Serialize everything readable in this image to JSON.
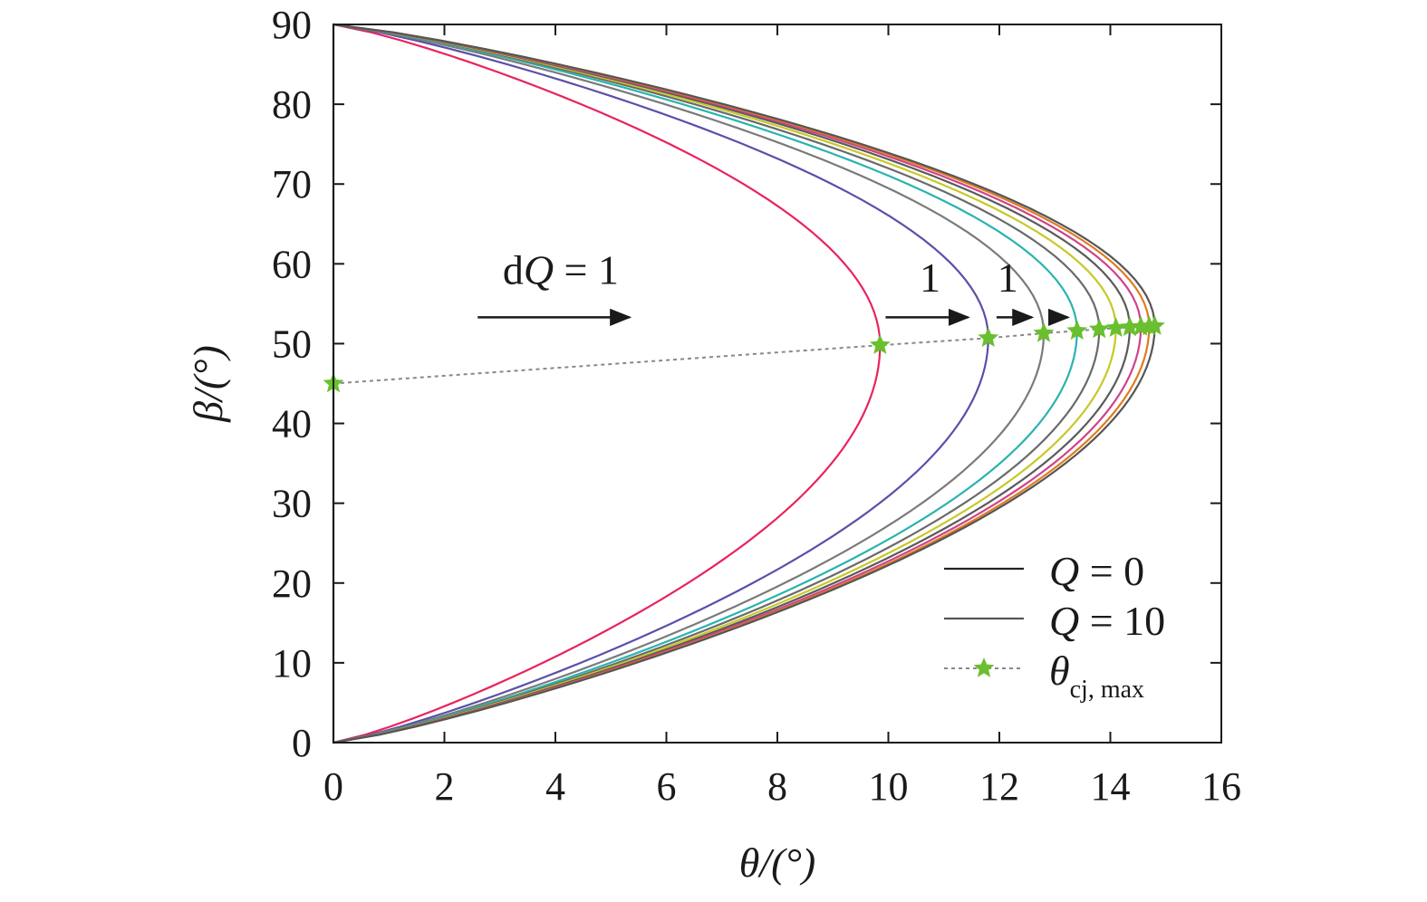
{
  "chart_data": {
    "type": "line",
    "title": "",
    "xlabel": "θ/(°)",
    "ylabel": "β/(°)",
    "xlim": [
      0,
      16
    ],
    "ylim": [
      0,
      90
    ],
    "x_ticks": [
      "0",
      "2",
      "4",
      "6",
      "8",
      "10",
      "12",
      "14",
      "16"
    ],
    "y_ticks": [
      "0",
      "10",
      "20",
      "30",
      "40",
      "50",
      "60",
      "70",
      "80",
      "90"
    ],
    "grid": false,
    "legend_position": "bottom-right",
    "legend": [
      {
        "label_var": "Q",
        "label_rest": " = 0",
        "style": "solid",
        "color": "#222222"
      },
      {
        "label_var": "Q",
        "label_rest": " = 10",
        "style": "solid",
        "color": "#555555"
      },
      {
        "label_var": "θ",
        "label_sub": "cj, max",
        "style": "dotted-star",
        "color": "#6abf2e"
      }
    ],
    "series": [
      {
        "Q": 0,
        "theta_max": 0.0,
        "beta_at_max": 45.0,
        "color": "#222222"
      },
      {
        "Q": 1,
        "theta_max": 9.85,
        "beta_at_max": 49.8,
        "color": "#e8245c"
      },
      {
        "Q": 2,
        "theta_max": 11.8,
        "beta_at_max": 50.7,
        "color": "#5b4fa8"
      },
      {
        "Q": 3,
        "theta_max": 12.8,
        "beta_at_max": 51.3,
        "color": "#7a7a7a"
      },
      {
        "Q": 4,
        "theta_max": 13.4,
        "beta_at_max": 51.6,
        "color": "#2ab3b0"
      },
      {
        "Q": 5,
        "theta_max": 13.8,
        "beta_at_max": 51.8,
        "color": "#6a6a6a"
      },
      {
        "Q": 6,
        "theta_max": 14.1,
        "beta_at_max": 51.95,
        "color": "#c8c828"
      },
      {
        "Q": 7,
        "theta_max": 14.35,
        "beta_at_max": 52.05,
        "color": "#5a5a5a"
      },
      {
        "Q": 8,
        "theta_max": 14.55,
        "beta_at_max": 52.1,
        "color": "#d0428a"
      },
      {
        "Q": 9,
        "theta_max": 14.7,
        "beta_at_max": 52.15,
        "color": "#e07b20"
      },
      {
        "Q": 10,
        "theta_max": 14.8,
        "beta_at_max": 52.2,
        "color": "#555555"
      }
    ],
    "theta_cj_max_points": [
      [
        0.0,
        45.0
      ],
      [
        9.85,
        49.8
      ],
      [
        11.8,
        50.7
      ],
      [
        12.8,
        51.3
      ],
      [
        13.4,
        51.6
      ],
      [
        13.8,
        51.8
      ],
      [
        14.1,
        51.95
      ],
      [
        14.35,
        52.05
      ],
      [
        14.55,
        52.1
      ],
      [
        14.7,
        52.15
      ],
      [
        14.8,
        52.2
      ]
    ],
    "annotations": [
      {
        "name": "dq-label",
        "prefix": "d",
        "var": "Q",
        "rest": " = 1",
        "x": 3.05,
        "y": 57.5
      },
      {
        "name": "dq-arrow",
        "x1": 2.6,
        "x2": 5.4,
        "y": 53.3
      },
      {
        "text": "1",
        "name": "step-label-1",
        "x": 10.75,
        "y": 56.5
      },
      {
        "text": "1",
        "name": "step-label-2",
        "x": 12.15,
        "y": 56.5
      },
      {
        "name": "step-arrow-1",
        "x1": 9.95,
        "x2": 11.5,
        "y": 53.3
      },
      {
        "name": "step-arrow-2",
        "x1": 11.95,
        "x2": 12.65,
        "y": 53.3
      },
      {
        "name": "step-arrow-3",
        "x1": 12.95,
        "x2": 13.3,
        "y": 53.3
      }
    ],
    "colors": {
      "axis": "#1a1a1a",
      "star": "#6abf2e",
      "dotted": "#888888"
    }
  }
}
